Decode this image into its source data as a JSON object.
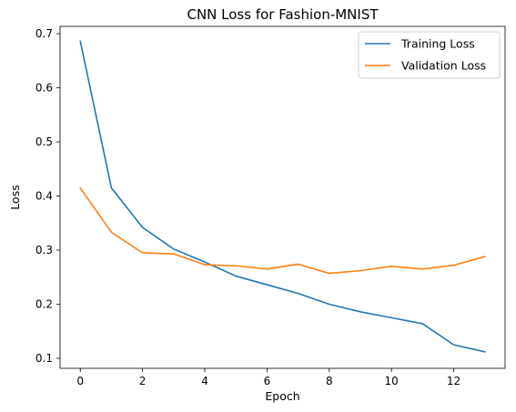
{
  "chart_data": {
    "type": "line",
    "title": "CNN Loss for Fashion-MNIST",
    "xlabel": "Epoch",
    "ylabel": "Loss",
    "xlim": [
      -0.65,
      13.65
    ],
    "ylim": [
      0.0815,
      0.7135
    ],
    "xticks": [
      0,
      2,
      4,
      6,
      8,
      10,
      12
    ],
    "yticks": [
      0.1,
      0.2,
      0.3,
      0.4,
      0.5,
      0.6,
      0.7
    ],
    "grid": false,
    "legend_position": "top-right",
    "x": [
      0,
      1,
      2,
      3,
      4,
      5,
      6,
      7,
      8,
      9,
      10,
      11,
      12,
      13
    ],
    "series": [
      {
        "name": "Training Loss",
        "color": "#1f77b4",
        "values": [
          0.686,
          0.415,
          0.342,
          0.302,
          0.278,
          0.252,
          0.236,
          0.22,
          0.2,
          0.186,
          0.175,
          0.164,
          0.125,
          0.112
        ]
      },
      {
        "name": "Validation Loss",
        "color": "#ff7f0e",
        "values": [
          0.415,
          0.333,
          0.295,
          0.293,
          0.273,
          0.271,
          0.265,
          0.274,
          0.257,
          0.262,
          0.27,
          0.265,
          0.272,
          0.288
        ]
      }
    ]
  }
}
